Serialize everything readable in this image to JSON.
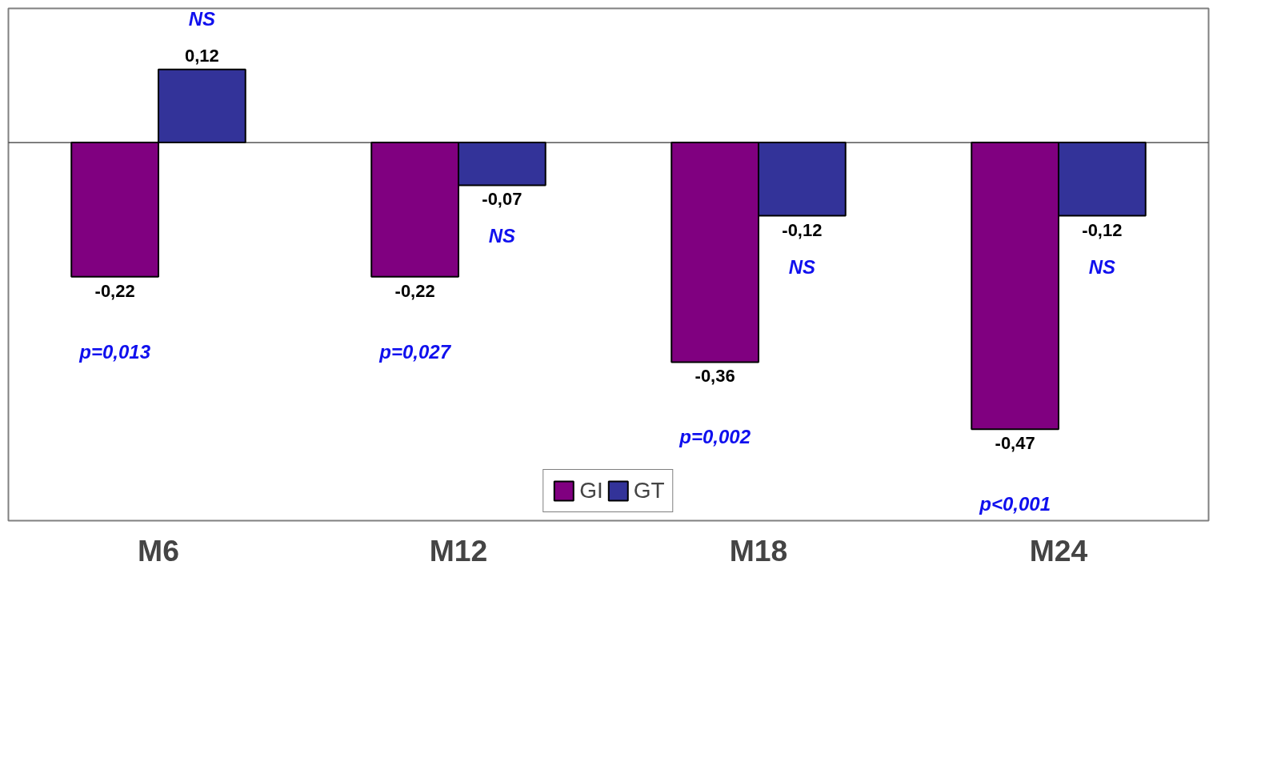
{
  "chart_data": {
    "type": "bar",
    "categories": [
      "M6",
      "M12",
      "M18",
      "M24"
    ],
    "series": [
      {
        "name": "GI",
        "color": "#800080",
        "values": [
          -0.22,
          -0.22,
          -0.36,
          -0.47
        ],
        "value_labels": [
          "-0,22",
          "-0,22",
          "-0,36",
          "-0,47"
        ]
      },
      {
        "name": "GT",
        "color": "#333399",
        "values": [
          0.12,
          -0.07,
          -0.12,
          -0.12
        ],
        "value_labels": [
          "0,12",
          "-0,07",
          "-0,12",
          "-0,12"
        ]
      }
    ],
    "ylim": [
      -0.62,
      0.22
    ],
    "tick_labels": "x",
    "grid": false,
    "legend": "bottom",
    "annotations": [
      "NS",
      "p=0,013",
      "NS",
      "p=0,027",
      "NS",
      "p=0,002",
      "NS",
      "p<0,001"
    ]
  }
}
